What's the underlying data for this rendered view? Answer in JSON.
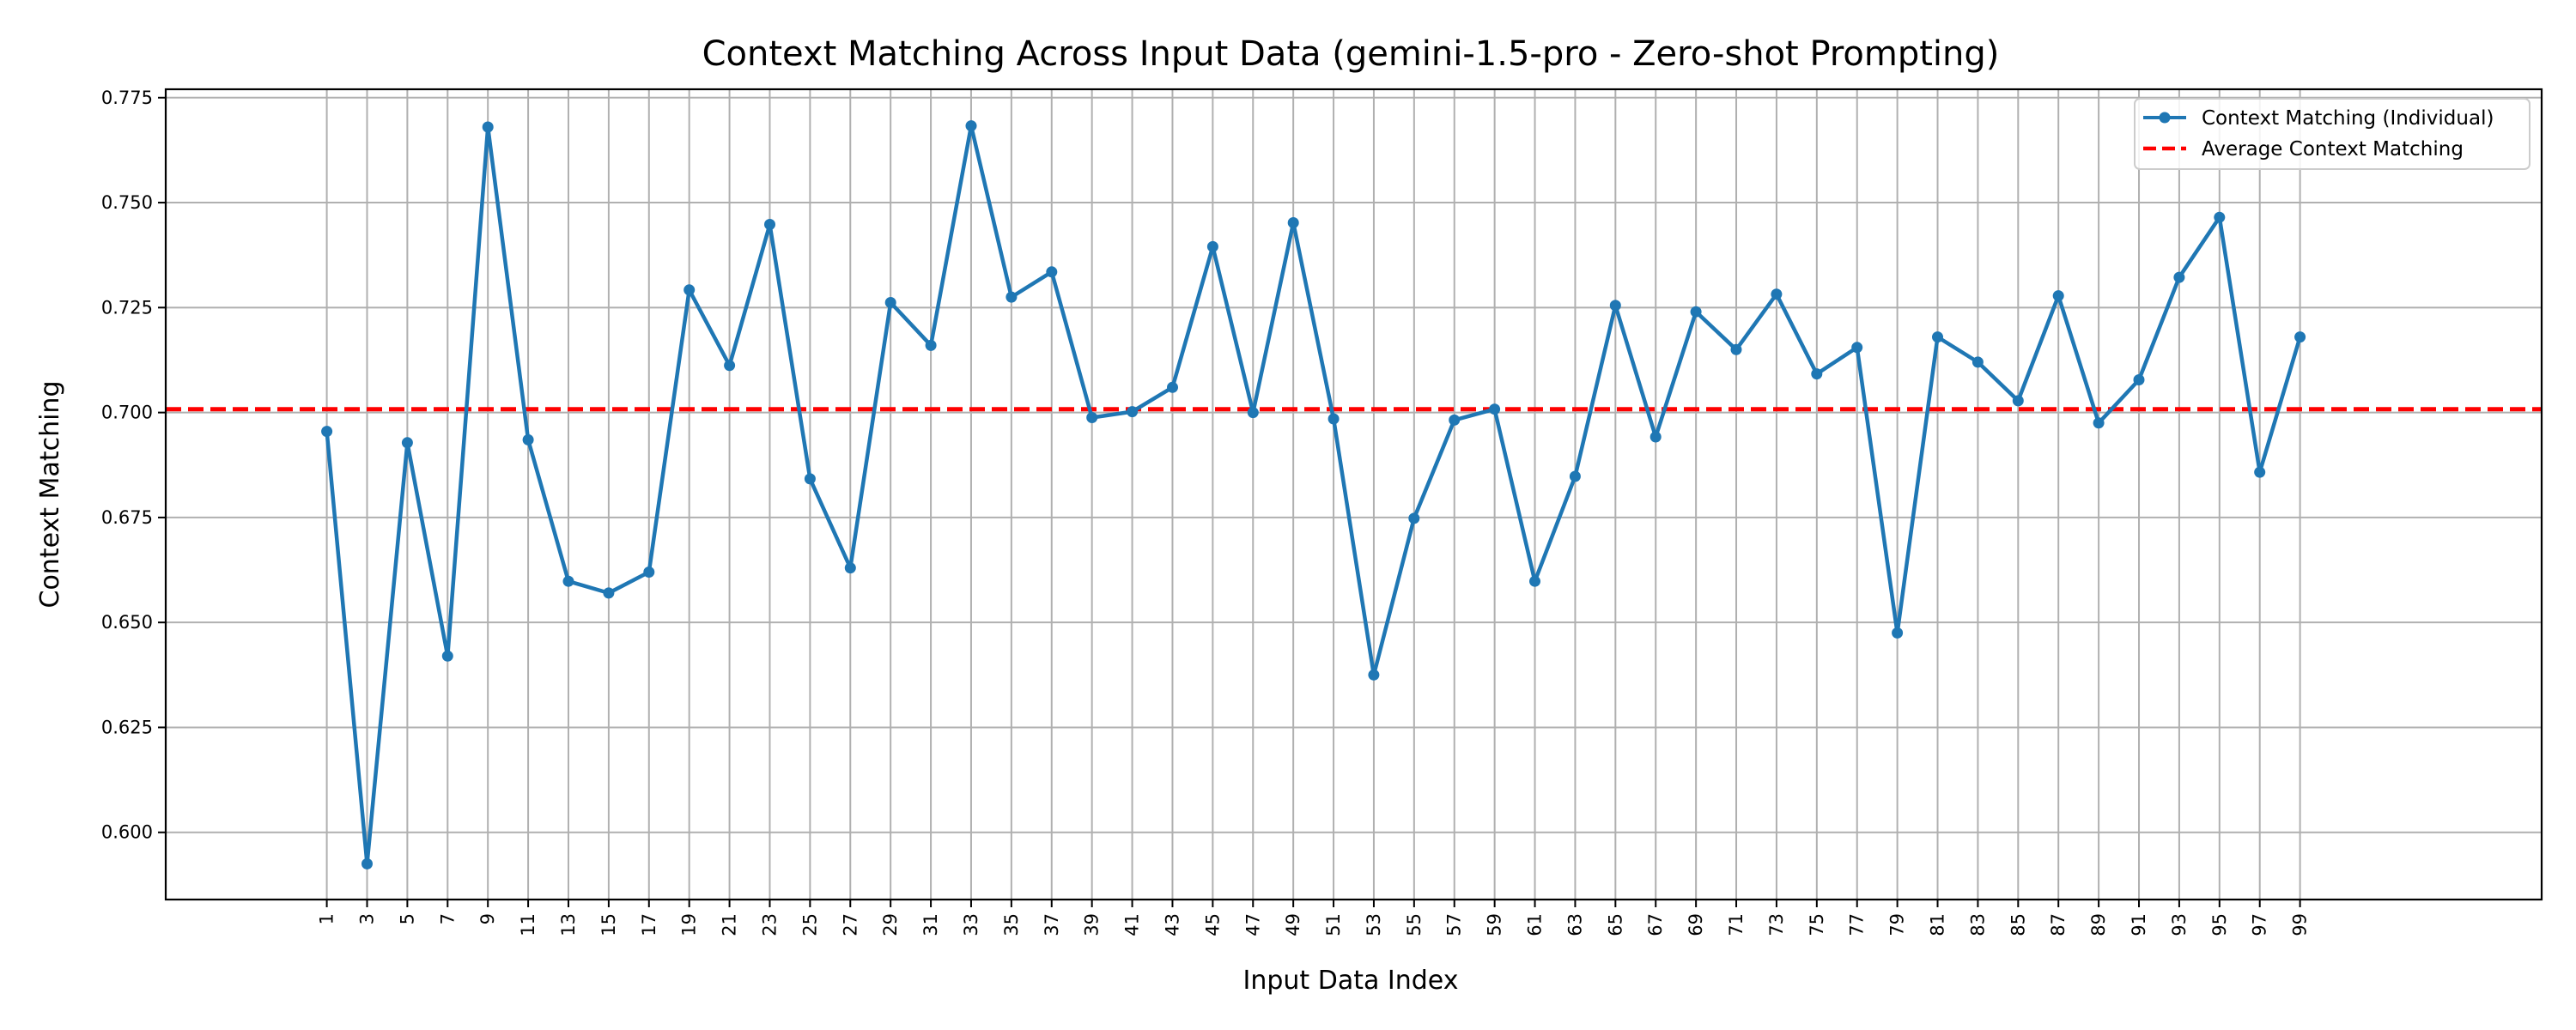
{
  "colors": {
    "series": "#1f77b4",
    "average": "#ff0000",
    "grid": "#b0b0b0",
    "axis": "#000000",
    "legend_border": "#cccccc"
  },
  "chart_data": {
    "type": "line",
    "title": "Context Matching Across Input Data (gemini-1.5-pro - Zero-shot Prompting)",
    "xlabel": "Input Data Index",
    "ylabel": "Context Matching",
    "xlim": [
      -4,
      55
    ],
    "ylim": [
      0.584,
      0.777
    ],
    "grid": true,
    "legend_position": "top-right",
    "x_ticks": [
      "1",
      "3",
      "5",
      "7",
      "9",
      "11",
      "13",
      "15",
      "17",
      "19",
      "21",
      "23",
      "25",
      "27",
      "29",
      "31",
      "33",
      "35",
      "37",
      "39",
      "41",
      "43",
      "45",
      "47",
      "49",
      "51",
      "53",
      "55",
      "57",
      "59",
      "61",
      "63",
      "65",
      "67",
      "69",
      "71",
      "73",
      "75",
      "77",
      "79",
      "81",
      "83",
      "85",
      "87",
      "89",
      "91",
      "93",
      "95",
      "97",
      "99"
    ],
    "y_ticks": [
      "0.600",
      "0.625",
      "0.650",
      "0.675",
      "0.700",
      "0.725",
      "0.750",
      "0.775"
    ],
    "series": [
      {
        "name": "Context Matching (Individual)",
        "style": "line-with-markers",
        "x": [
          "1",
          "3",
          "5",
          "7",
          "9",
          "11",
          "13",
          "15",
          "17",
          "19",
          "21",
          "23",
          "25",
          "27",
          "29",
          "31",
          "33",
          "35",
          "37",
          "39",
          "41",
          "43",
          "45",
          "47",
          "49",
          "51",
          "53",
          "55",
          "57",
          "59",
          "61",
          "63",
          "65",
          "67",
          "69",
          "71",
          "73",
          "75",
          "77",
          "79",
          "81",
          "83",
          "85",
          "87",
          "89",
          "91",
          "93",
          "95",
          "97",
          "99"
        ],
        "values": [
          0.6955,
          0.5925,
          0.6928,
          0.642,
          0.768,
          0.6935,
          0.6598,
          0.657,
          0.662,
          0.7292,
          0.7112,
          0.7448,
          0.6842,
          0.663,
          0.7262,
          0.716,
          0.7683,
          0.7275,
          0.7335,
          0.6988,
          0.7002,
          0.706,
          0.7395,
          0.7,
          0.7452,
          0.6985,
          0.6375,
          0.6748,
          0.6982,
          0.7008,
          0.6598,
          0.6848,
          0.7255,
          0.6942,
          0.724,
          0.715,
          0.7282,
          0.7092,
          0.7155,
          0.6475,
          0.718,
          0.712,
          0.7028,
          0.7278,
          0.6975,
          0.7078,
          0.7322,
          0.7465,
          0.6858,
          0.718
        ]
      },
      {
        "name": "Average Context Matching",
        "style": "dashed-horizontal",
        "value": 0.7008
      }
    ]
  }
}
